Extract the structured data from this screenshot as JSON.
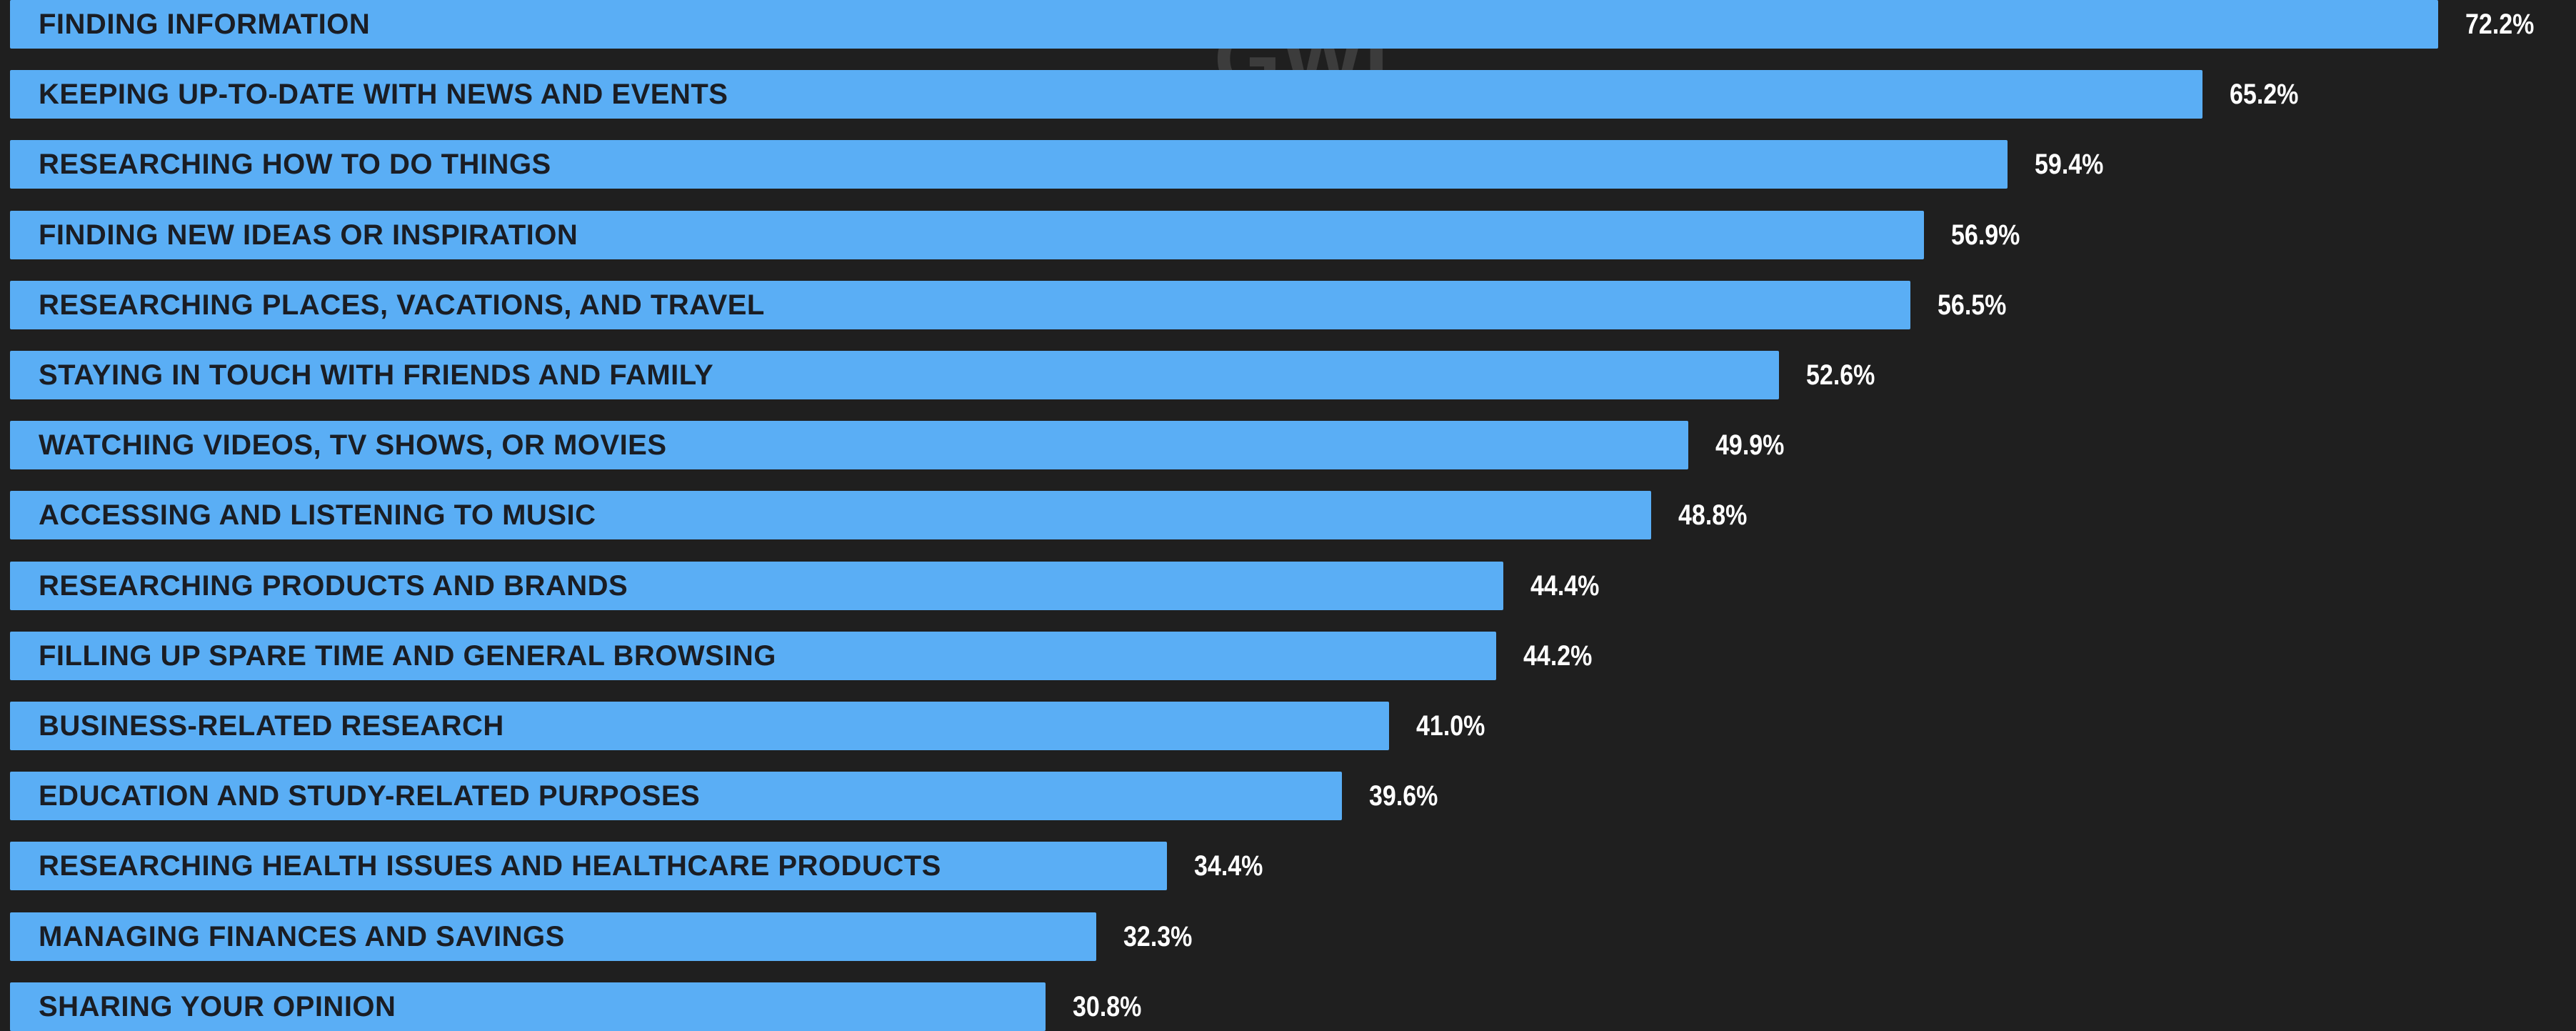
{
  "watermark": "GWI.",
  "colors": {
    "background": "#1f1f1f",
    "bar": "#5aaef5",
    "bar_text": "#1a1d24",
    "value_text": "#ffffff"
  },
  "chart_data": {
    "type": "bar",
    "orientation": "horizontal",
    "title": "",
    "xlabel": "",
    "ylabel": "",
    "xlim": [
      0,
      72.2
    ],
    "grid": false,
    "legend": "none",
    "value_suffix": "%",
    "categories": [
      "FINDING INFORMATION",
      "KEEPING UP-TO-DATE WITH NEWS AND EVENTS",
      "RESEARCHING HOW TO DO THINGS",
      "FINDING NEW IDEAS OR INSPIRATION",
      "RESEARCHING PLACES, VACATIONS, AND TRAVEL",
      "STAYING IN TOUCH WITH FRIENDS AND FAMILY",
      "WATCHING VIDEOS, TV SHOWS, OR MOVIES",
      "ACCESSING AND LISTENING TO MUSIC",
      "RESEARCHING PRODUCTS AND BRANDS",
      "FILLING UP SPARE TIME AND GENERAL BROWSING",
      "BUSINESS-RELATED RESEARCH",
      "EDUCATION AND STUDY-RELATED PURPOSES",
      "RESEARCHING HEALTH ISSUES AND HEALTHCARE PRODUCTS",
      "MANAGING FINANCES AND SAVINGS",
      "SHARING YOUR OPINION"
    ],
    "values": [
      72.2,
      65.2,
      59.4,
      56.9,
      56.5,
      52.6,
      49.9,
      48.8,
      44.4,
      44.2,
      41.0,
      39.6,
      34.4,
      32.3,
      30.8
    ],
    "value_labels": [
      "72.2%",
      "65.2%",
      "59.4%",
      "56.9%",
      "56.5%",
      "52.6%",
      "49.9%",
      "48.8%",
      "44.4%",
      "44.2%",
      "41.0%",
      "39.6%",
      "34.4%",
      "32.3%",
      "30.8%"
    ]
  }
}
